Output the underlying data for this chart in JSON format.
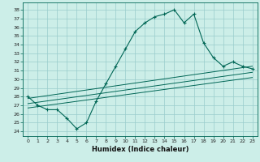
{
  "title": "",
  "xlabel": "Humidex (Indice chaleur)",
  "bg_color": "#cceee8",
  "line_color": "#006655",
  "grid_color": "#99cccc",
  "xlim": [
    -0.5,
    23.5
  ],
  "ylim": [
    23.5,
    38.8
  ],
  "yticks": [
    24,
    25,
    26,
    27,
    28,
    29,
    30,
    31,
    32,
    33,
    34,
    35,
    36,
    37,
    38
  ],
  "xticks": [
    0,
    1,
    2,
    3,
    4,
    5,
    6,
    7,
    8,
    9,
    10,
    11,
    12,
    13,
    14,
    15,
    16,
    17,
    18,
    19,
    20,
    21,
    22,
    23
  ],
  "main_x": [
    0,
    1,
    2,
    3,
    4,
    5,
    6,
    7,
    8,
    9,
    10,
    11,
    12,
    13,
    14,
    15,
    16,
    17,
    18,
    19,
    20,
    21,
    22,
    23
  ],
  "main_y": [
    28.0,
    27.0,
    26.5,
    26.5,
    25.5,
    24.3,
    25.0,
    27.5,
    29.5,
    31.5,
    33.5,
    35.5,
    36.5,
    37.2,
    37.5,
    38.0,
    36.5,
    37.5,
    34.2,
    32.5,
    31.5,
    32.0,
    31.5,
    31.2
  ],
  "line2_x": [
    0,
    23
  ],
  "line2_y": [
    27.8,
    31.5
  ],
  "line3_x": [
    0,
    23
  ],
  "line3_y": [
    27.2,
    30.8
  ],
  "line4_x": [
    0,
    23
  ],
  "line4_y": [
    26.7,
    30.2
  ]
}
